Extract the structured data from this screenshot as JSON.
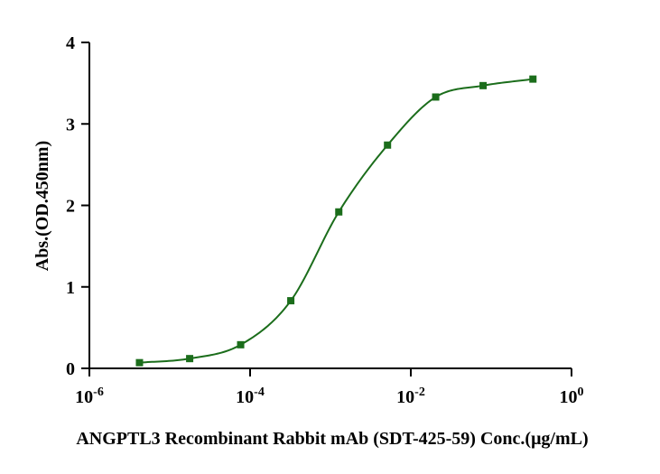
{
  "chart_data": {
    "type": "scatter",
    "title": "",
    "xlabel": "ANGPTL3 Recombinant Rabbit mAb (SDT-425-59) Conc.(μg/mL)",
    "ylabel": "Abs.(OD.450nm)",
    "x_scale": "log10",
    "xlim": [
      1e-06,
      1
    ],
    "ylim": [
      0,
      4
    ],
    "x_ticks": [
      {
        "base": "10",
        "exp": "-6"
      },
      {
        "base": "10",
        "exp": "-4"
      },
      {
        "base": "10",
        "exp": "-2"
      },
      {
        "base": "10",
        "exp": "0"
      }
    ],
    "y_ticks": [
      "0",
      "1",
      "2",
      "3",
      "4"
    ],
    "grid": false,
    "legend": "none",
    "series": [
      {
        "x": [
          4.2e-06,
          1.77e-05,
          7.63e-05,
          0.000321,
          0.00127,
          0.00513,
          0.0204,
          0.0794,
          0.331
        ],
        "y": [
          0.07,
          0.12,
          0.29,
          0.83,
          1.92,
          2.74,
          3.33,
          3.47,
          3.55
        ],
        "color": "#1b6d1b",
        "marker": "square",
        "fit_line": true
      }
    ]
  }
}
